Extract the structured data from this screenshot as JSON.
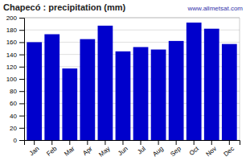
{
  "chart_data": {
    "type": "bar",
    "title": "Chapecó : precipitation (mm)",
    "categories": [
      "Jan",
      "Feb",
      "Mar",
      "Apr",
      "May",
      "Jun",
      "Jul",
      "Aug",
      "Sep",
      "Oct",
      "Nov",
      "Dec"
    ],
    "values": [
      160,
      173,
      117,
      165,
      187,
      145,
      152,
      148,
      162,
      192,
      182,
      157
    ],
    "color": "#0000CC",
    "ylim": [
      0,
      200
    ],
    "yticks": [
      0,
      20,
      40,
      60,
      80,
      100,
      120,
      140,
      160,
      180,
      200
    ],
    "grid": true,
    "annotations": [
      "www.allmetsat.com"
    ]
  }
}
